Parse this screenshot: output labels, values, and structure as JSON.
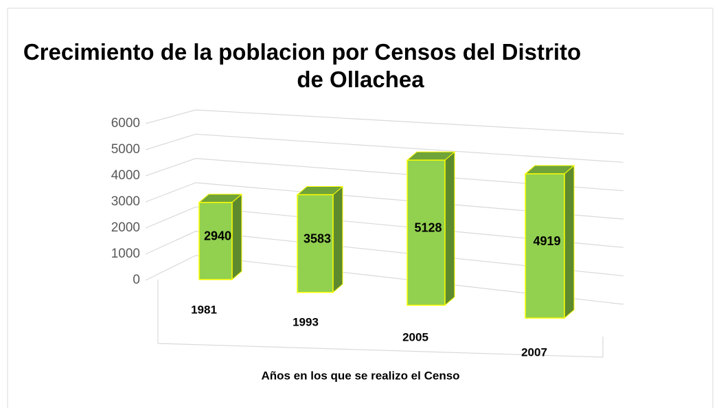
{
  "chart_data": {
    "type": "bar3d",
    "title": "Crecimiento de la poblacion por Censos del Distrito de Ollachea",
    "x_label": "Años en los que se realizo el Censo",
    "categories": [
      "1981",
      "1993",
      "2005",
      "2007"
    ],
    "values": [
      2940,
      3583,
      5128,
      4919
    ],
    "color": "#92d050",
    "ylim": [
      0,
      6000
    ],
    "yticks": [
      0,
      1000,
      2000,
      3000,
      4000,
      5000,
      6000
    ],
    "grid": true
  }
}
